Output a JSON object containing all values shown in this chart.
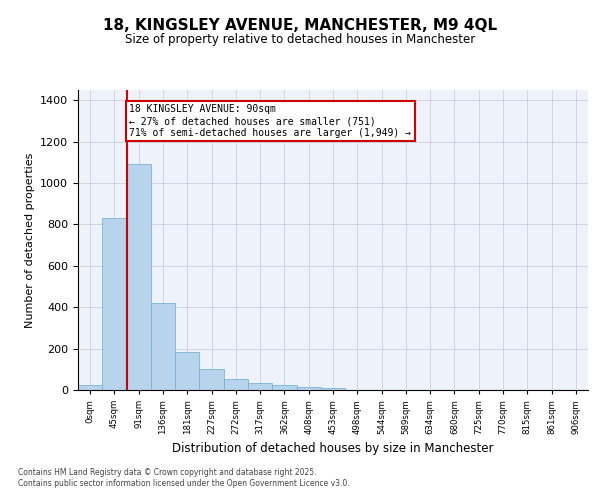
{
  "title": "18, KINGSLEY AVENUE, MANCHESTER, M9 4QL",
  "subtitle": "Size of property relative to detached houses in Manchester",
  "xlabel": "Distribution of detached houses by size in Manchester",
  "ylabel": "Number of detached properties",
  "bar_color": "#b8d4ed",
  "bar_edge_color": "#6aaad4",
  "categories": [
    "0sqm",
    "45sqm",
    "91sqm",
    "136sqm",
    "181sqm",
    "227sqm",
    "272sqm",
    "317sqm",
    "362sqm",
    "408sqm",
    "453sqm",
    "498sqm",
    "544sqm",
    "589sqm",
    "634sqm",
    "680sqm",
    "725sqm",
    "770sqm",
    "815sqm",
    "861sqm",
    "906sqm"
  ],
  "values": [
    25,
    830,
    1090,
    420,
    185,
    100,
    55,
    35,
    25,
    15,
    8,
    0,
    0,
    0,
    0,
    0,
    0,
    0,
    0,
    0,
    0
  ],
  "property_line_x": 1.5,
  "annotation_text": "18 KINGSLEY AVENUE: 90sqm\n← 27% of detached houses are smaller (751)\n71% of semi-detached houses are larger (1,949) →",
  "annotation_box_color": "#ffffff",
  "annotation_border_color": "#cc0000",
  "property_line_color": "#cc0000",
  "background_color": "#eef2fb",
  "grid_color": "#c8c8d8",
  "ylim": [
    0,
    1450
  ],
  "yticks": [
    0,
    200,
    400,
    600,
    800,
    1000,
    1200,
    1400
  ],
  "footer_line1": "Contains HM Land Registry data © Crown copyright and database right 2025.",
  "footer_line2": "Contains public sector information licensed under the Open Government Licence v3.0."
}
